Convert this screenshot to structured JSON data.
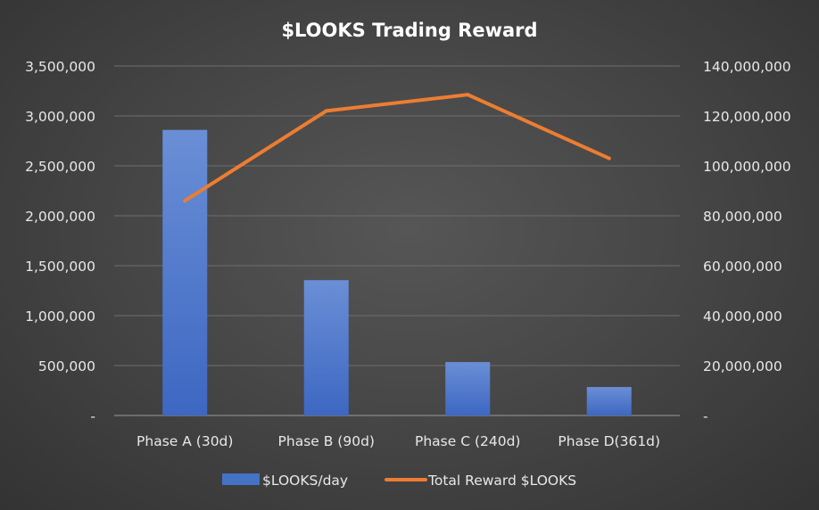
{
  "chart_data": {
    "type": "bar",
    "title": "$LOOKS Trading Reward",
    "categories": [
      "Phase A (30d)",
      "Phase B (90d)",
      "Phase C (240d)",
      "Phase D(361d)"
    ],
    "series": [
      {
        "name": "$LOOKS/day",
        "type": "bar",
        "axis": "left",
        "color": "#4472c4",
        "values": [
          2860000,
          1355000,
          535000,
          285000
        ]
      },
      {
        "name": "Total Reward $LOOKS",
        "type": "line",
        "axis": "right",
        "color": "#ed7d31",
        "values": [
          86000000,
          122000000,
          128500000,
          103000000
        ]
      }
    ],
    "ylim_left": [
      0,
      3500000
    ],
    "ylim_right": [
      0,
      140000000
    ],
    "yticks_left": [
      "-",
      "500,000",
      "1,000,000",
      "1,500,000",
      "2,000,000",
      "2,500,000",
      "3,000,000",
      "3,500,000"
    ],
    "yticks_right": [
      "-",
      "20,000,000",
      "40,000,000",
      "60,000,000",
      "80,000,000",
      "100,000,000",
      "120,000,000",
      "140,000,000"
    ],
    "grid": true,
    "legend_position": "bottom"
  }
}
